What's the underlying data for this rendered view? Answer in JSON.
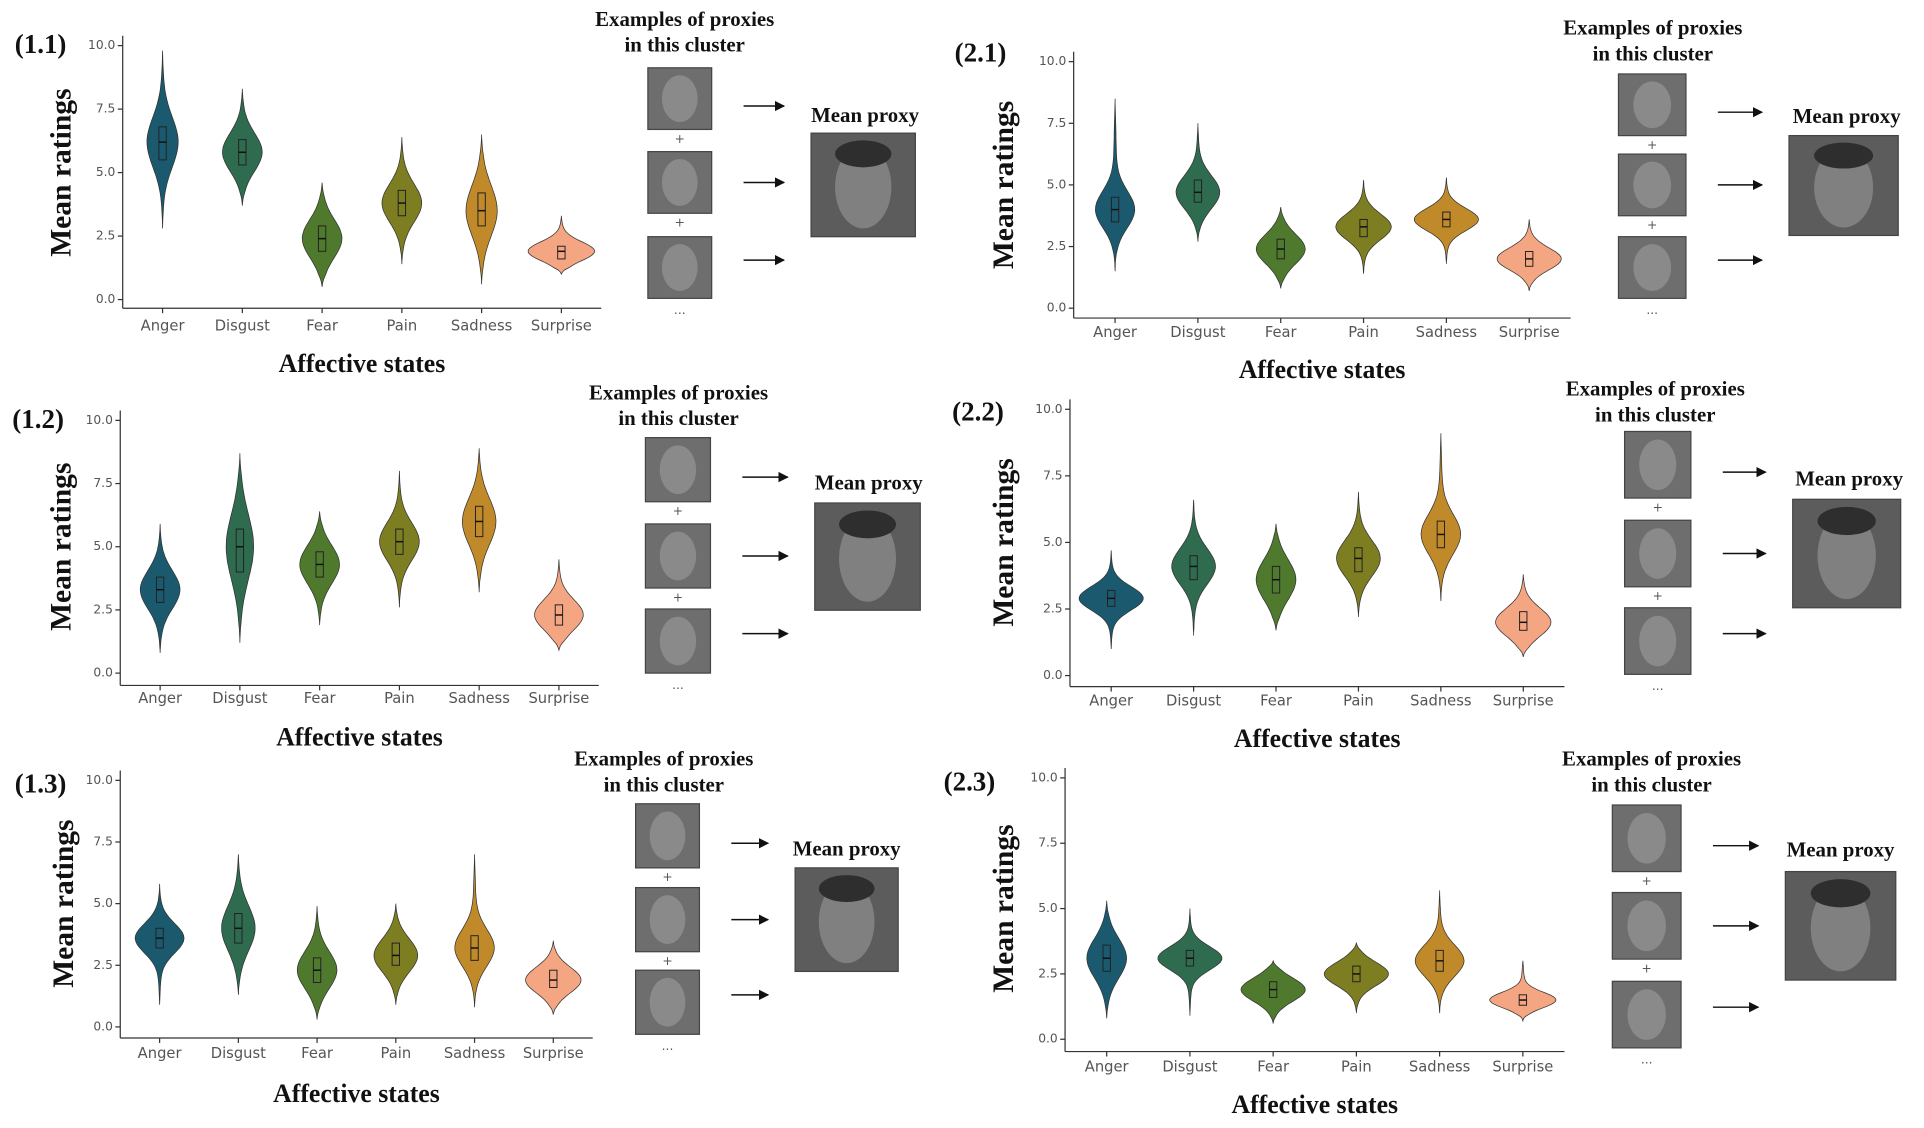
{
  "chart_data": [
    {
      "type": "violin",
      "panel_label": "(1.1)",
      "y_label": "Mean ratings",
      "x_label": "Affective states",
      "proxies_title": [
        "Examples of proxies",
        "in this cluster"
      ],
      "mean_proxy_title": "Mean proxy",
      "separator": "+",
      "ellipsis": "...",
      "categories": [
        "Anger",
        "Disgust",
        "Fear",
        "Pain",
        "Sadness",
        "Surprise"
      ],
      "colors": [
        "#1b5a6e",
        "#2e6b4f",
        "#4f7a2e",
        "#7d7d22",
        "#c08a2a",
        "#f4a582"
      ],
      "ylim": [
        0,
        10
      ],
      "yticks": [
        {
          "value": 0,
          "label": "0.0"
        },
        2.5,
        {
          "value": 5,
          "label": "5.0"
        },
        7.5,
        {
          "value": 10,
          "label": "10.0"
        }
      ],
      "violins": [
        {
          "min": 2.8,
          "q1": 5.5,
          "median": 6.2,
          "q3": 6.8,
          "max": 9.8
        },
        {
          "min": 3.7,
          "q1": 5.3,
          "median": 5.8,
          "q3": 6.3,
          "max": 8.3
        },
        {
          "min": 0.5,
          "q1": 1.9,
          "median": 2.4,
          "q3": 2.9,
          "max": 4.6
        },
        {
          "min": 1.4,
          "q1": 3.3,
          "median": 3.8,
          "q3": 4.3,
          "max": 6.4
        },
        {
          "min": 0.6,
          "q1": 2.9,
          "median": 3.5,
          "q3": 4.2,
          "max": 6.5
        },
        {
          "min": 1.0,
          "q1": 1.6,
          "median": 1.9,
          "q3": 2.1,
          "max": 3.3
        }
      ]
    },
    {
      "type": "violin",
      "panel_label": "(1.2)",
      "y_label": "Mean ratings",
      "x_label": "Affective states",
      "proxies_title": [
        "Examples of proxies",
        "in this cluster"
      ],
      "mean_proxy_title": "Mean proxy",
      "separator": "+",
      "ellipsis": "...",
      "categories": [
        "Anger",
        "Disgust",
        "Fear",
        "Pain",
        "Sadness",
        "Surprise"
      ],
      "colors": [
        "#1b5a6e",
        "#2e6b4f",
        "#4f7a2e",
        "#7d7d22",
        "#c08a2a",
        "#f4a582"
      ],
      "ylim": [
        0,
        10
      ],
      "yticks": [
        {
          "value": 0,
          "label": "0.0"
        },
        2.5,
        {
          "value": 5,
          "label": "5.0"
        },
        7.5,
        {
          "value": 10,
          "label": "10.0"
        }
      ],
      "violins": [
        {
          "min": 0.8,
          "q1": 2.8,
          "median": 3.3,
          "q3": 3.8,
          "max": 5.9
        },
        {
          "min": 1.2,
          "q1": 4.0,
          "median": 5.0,
          "q3": 5.7,
          "max": 8.7
        },
        {
          "min": 1.9,
          "q1": 3.8,
          "median": 4.3,
          "q3": 4.8,
          "max": 6.4
        },
        {
          "min": 2.6,
          "q1": 4.7,
          "median": 5.2,
          "q3": 5.7,
          "max": 8.0
        },
        {
          "min": 3.2,
          "q1": 5.4,
          "median": 6.0,
          "q3": 6.6,
          "max": 8.9
        },
        {
          "min": 0.9,
          "q1": 1.9,
          "median": 2.3,
          "q3": 2.7,
          "max": 4.5
        }
      ]
    },
    {
      "type": "violin",
      "panel_label": "(1.3)",
      "y_label": "Mean ratings",
      "x_label": "Affective states",
      "proxies_title": [
        "Examples of proxies",
        "in this cluster"
      ],
      "mean_proxy_title": "Mean proxy",
      "separator": "+",
      "ellipsis": "...",
      "categories": [
        "Anger",
        "Disgust",
        "Fear",
        "Pain",
        "Sadness",
        "Surprise"
      ],
      "colors": [
        "#1b5a6e",
        "#2e6b4f",
        "#4f7a2e",
        "#7d7d22",
        "#c08a2a",
        "#f4a582"
      ],
      "ylim": [
        0,
        10
      ],
      "yticks": [
        {
          "value": 0,
          "label": "0.0"
        },
        2.5,
        {
          "value": 5,
          "label": "5.0"
        },
        7.5,
        {
          "value": 10,
          "label": "10.0"
        }
      ],
      "violins": [
        {
          "min": 0.9,
          "q1": 3.2,
          "median": 3.6,
          "q3": 4.0,
          "max": 5.8
        },
        {
          "min": 1.3,
          "q1": 3.4,
          "median": 4.0,
          "q3": 4.6,
          "max": 7.0
        },
        {
          "min": 0.3,
          "q1": 1.8,
          "median": 2.3,
          "q3": 2.8,
          "max": 4.9
        },
        {
          "min": 0.9,
          "q1": 2.5,
          "median": 2.9,
          "q3": 3.4,
          "max": 5.0
        },
        {
          "min": 0.8,
          "q1": 2.7,
          "median": 3.2,
          "q3": 3.7,
          "max": 7.0
        },
        {
          "min": 0.5,
          "q1": 1.6,
          "median": 1.9,
          "q3": 2.3,
          "max": 3.5
        }
      ]
    },
    {
      "type": "violin",
      "panel_label": "(2.1)",
      "y_label": "Mean ratings",
      "x_label": "Affective states",
      "proxies_title": [
        "Examples of proxies",
        "in this cluster"
      ],
      "mean_proxy_title": "Mean proxy",
      "separator": "+",
      "ellipsis": "...",
      "categories": [
        "Anger",
        "Disgust",
        "Fear",
        "Pain",
        "Sadness",
        "Surprise"
      ],
      "colors": [
        "#1b5a6e",
        "#2e6b4f",
        "#4f7a2e",
        "#7d7d22",
        "#c08a2a",
        "#f4a582"
      ],
      "ylim": [
        0,
        10
      ],
      "yticks": [
        {
          "value": 0,
          "label": "0.0"
        },
        2.5,
        {
          "value": 5,
          "label": "5.0"
        },
        7.5,
        {
          "value": 10,
          "label": "10.0"
        }
      ],
      "violins": [
        {
          "min": 1.5,
          "q1": 3.5,
          "median": 4.0,
          "q3": 4.5,
          "max": 8.5
        },
        {
          "min": 2.7,
          "q1": 4.3,
          "median": 4.7,
          "q3": 5.2,
          "max": 7.5
        },
        {
          "min": 0.8,
          "q1": 2.0,
          "median": 2.4,
          "q3": 2.8,
          "max": 4.1
        },
        {
          "min": 1.4,
          "q1": 2.9,
          "median": 3.3,
          "q3": 3.6,
          "max": 5.2
        },
        {
          "min": 1.8,
          "q1": 3.3,
          "median": 3.6,
          "q3": 3.9,
          "max": 5.3
        },
        {
          "min": 0.7,
          "q1": 1.7,
          "median": 2.0,
          "q3": 2.3,
          "max": 3.6
        }
      ]
    },
    {
      "type": "violin",
      "panel_label": "(2.2)",
      "y_label": "Mean ratings",
      "x_label": "Affective states",
      "proxies_title": [
        "Examples of proxies",
        "in this cluster"
      ],
      "mean_proxy_title": "Mean proxy",
      "separator": "+",
      "ellipsis": "...",
      "categories": [
        "Anger",
        "Disgust",
        "Fear",
        "Pain",
        "Sadness",
        "Surprise"
      ],
      "colors": [
        "#1b5a6e",
        "#2e6b4f",
        "#4f7a2e",
        "#7d7d22",
        "#c08a2a",
        "#f4a582"
      ],
      "ylim": [
        0,
        10
      ],
      "yticks": [
        {
          "value": 0,
          "label": "0.0"
        },
        2.5,
        {
          "value": 5,
          "label": "5.0"
        },
        7.5,
        {
          "value": 10,
          "label": "10.0"
        }
      ],
      "violins": [
        {
          "min": 1.0,
          "q1": 2.6,
          "median": 2.9,
          "q3": 3.2,
          "max": 4.7
        },
        {
          "min": 1.5,
          "q1": 3.6,
          "median": 4.1,
          "q3": 4.5,
          "max": 6.6
        },
        {
          "min": 1.7,
          "q1": 3.1,
          "median": 3.6,
          "q3": 4.1,
          "max": 5.7
        },
        {
          "min": 2.2,
          "q1": 3.9,
          "median": 4.4,
          "q3": 4.8,
          "max": 6.9
        },
        {
          "min": 2.8,
          "q1": 4.8,
          "median": 5.3,
          "q3": 5.8,
          "max": 9.1
        },
        {
          "min": 0.7,
          "q1": 1.7,
          "median": 2.0,
          "q3": 2.4,
          "max": 3.8
        }
      ]
    },
    {
      "type": "violin",
      "panel_label": "(2.3)",
      "y_label": "Mean ratings",
      "x_label": "Affective states",
      "proxies_title": [
        "Examples of proxies",
        "in this cluster"
      ],
      "mean_proxy_title": "Mean proxy",
      "separator": "+",
      "ellipsis": "...",
      "categories": [
        "Anger",
        "Disgust",
        "Fear",
        "Pain",
        "Sadness",
        "Surprise"
      ],
      "colors": [
        "#1b5a6e",
        "#2e6b4f",
        "#4f7a2e",
        "#7d7d22",
        "#c08a2a",
        "#f4a582"
      ],
      "ylim": [
        0,
        10
      ],
      "yticks": [
        {
          "value": 0,
          "label": "0.0"
        },
        2.5,
        {
          "value": 5,
          "label": "5.0"
        },
        7.5,
        {
          "value": 10,
          "label": "10.0"
        }
      ],
      "violins": [
        {
          "min": 0.8,
          "q1": 2.6,
          "median": 3.1,
          "q3": 3.6,
          "max": 5.3
        },
        {
          "min": 0.9,
          "q1": 2.8,
          "median": 3.1,
          "q3": 3.4,
          "max": 5.0
        },
        {
          "min": 0.6,
          "q1": 1.6,
          "median": 1.9,
          "q3": 2.2,
          "max": 3.0
        },
        {
          "min": 1.0,
          "q1": 2.2,
          "median": 2.5,
          "q3": 2.8,
          "max": 3.7
        },
        {
          "min": 1.0,
          "q1": 2.6,
          "median": 3.0,
          "q3": 3.4,
          "max": 5.7
        },
        {
          "min": 0.7,
          "q1": 1.3,
          "median": 1.5,
          "q3": 1.7,
          "max": 3.0
        }
      ]
    }
  ]
}
